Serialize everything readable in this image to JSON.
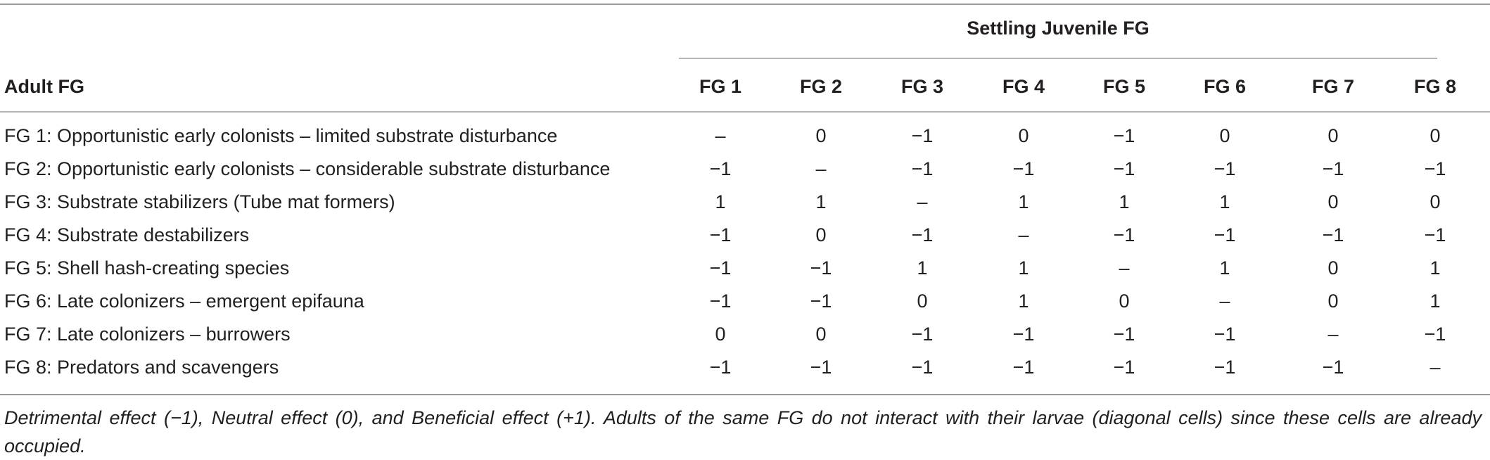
{
  "table": {
    "span_header": "Settling Juvenile FG",
    "row_header": "Adult FG",
    "columns": [
      "FG 1",
      "FG 2",
      "FG 3",
      "FG 4",
      "FG 5",
      "FG 6",
      "FG 7",
      "FG 8"
    ],
    "rows": [
      {
        "label": "FG 1: Opportunistic early colonists – limited substrate disturbance",
        "values": [
          "–",
          "0",
          "−1",
          "0",
          "−1",
          "0",
          "0",
          "0"
        ]
      },
      {
        "label": "FG 2: Opportunistic early colonists – considerable substrate disturbance",
        "values": [
          "−1",
          "–",
          "−1",
          "−1",
          "−1",
          "−1",
          "−1",
          "−1"
        ]
      },
      {
        "label": "FG 3: Substrate stabilizers (Tube mat formers)",
        "values": [
          "1",
          "1",
          "–",
          "1",
          "1",
          "1",
          "0",
          "0"
        ]
      },
      {
        "label": "FG 4: Substrate destabilizers",
        "values": [
          "−1",
          "0",
          "−1",
          "–",
          "−1",
          "−1",
          "−1",
          "−1"
        ]
      },
      {
        "label": "FG 5: Shell hash-creating species",
        "values": [
          "−1",
          "−1",
          "1",
          "1",
          "–",
          "1",
          "0",
          "1"
        ]
      },
      {
        "label": "FG 6: Late colonizers – emergent epifauna",
        "values": [
          "−1",
          "−1",
          "0",
          "1",
          "0",
          "–",
          "0",
          "1"
        ]
      },
      {
        "label": "FG 7: Late colonizers – burrowers",
        "values": [
          "0",
          "0",
          "−1",
          "−1",
          "−1",
          "−1",
          "–",
          "−1"
        ]
      },
      {
        "label": "FG 8: Predators and scavengers",
        "values": [
          "−1",
          "−1",
          "−1",
          "−1",
          "−1",
          "−1",
          "−1",
          "–"
        ]
      }
    ]
  },
  "footnote": "Detrimental effect (−1), Neutral effect (0), and Beneficial effect (+1). Adults of the same FG do not interact with their larvae (diagonal cells) since these cells are already occupied."
}
